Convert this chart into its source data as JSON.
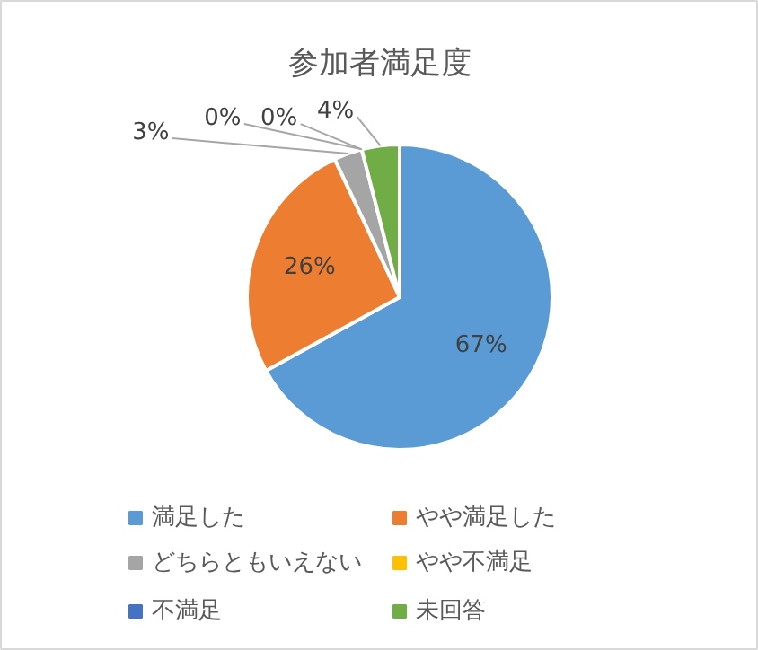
{
  "chart_data": {
    "type": "pie",
    "title": "参加者満足度",
    "categories": [
      "満足した",
      "やや満足した",
      "どちらともいえない",
      "やや不満足",
      "不満足",
      "未回答"
    ],
    "values": [
      67,
      26,
      3,
      0,
      0,
      4
    ],
    "value_labels": [
      "67%",
      "26%",
      "3%",
      "0%",
      "0%",
      "4%"
    ],
    "colors": [
      "#5b9bd5",
      "#ed7d31",
      "#a5a5a5",
      "#ffc000",
      "#4472c4",
      "#70ad47"
    ],
    "legend": "bottom"
  }
}
